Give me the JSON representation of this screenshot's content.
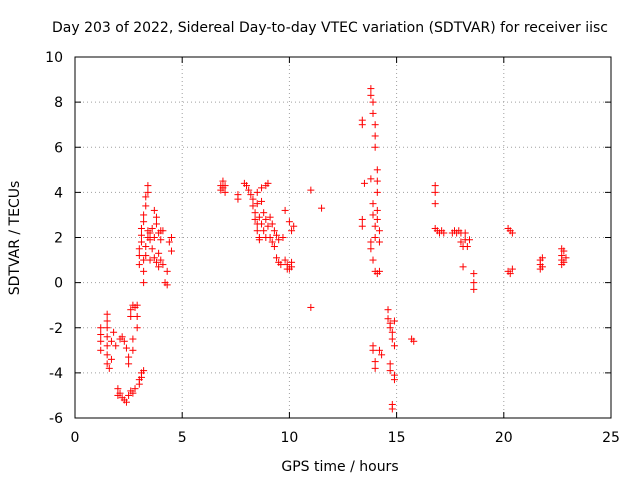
{
  "chart_data": {
    "type": "scatter",
    "title": "Day 203 of 2022, Sidereal Day-to-day VTEC variation (SDTVAR) for receiver iisc",
    "xlabel": "GPS time / hours",
    "ylabel": "SDTVAR / TECUs",
    "xlim": [
      0,
      25
    ],
    "ylim": [
      -6,
      10
    ],
    "xticks": [
      0,
      5,
      10,
      15,
      20,
      25
    ],
    "yticks": [
      -6,
      -4,
      -2,
      0,
      2,
      4,
      6,
      8,
      10
    ],
    "grid": true,
    "marker": "+",
    "color": "#ff0000",
    "series": [
      {
        "name": "SDTVAR",
        "points": [
          [
            1.2,
            -2.0
          ],
          [
            1.2,
            -2.3
          ],
          [
            1.2,
            -2.6
          ],
          [
            1.2,
            -3.0
          ],
          [
            1.5,
            -1.4
          ],
          [
            1.5,
            -1.7
          ],
          [
            1.5,
            -2.0
          ],
          [
            1.5,
            -2.4
          ],
          [
            1.5,
            -2.8
          ],
          [
            1.5,
            -3.2
          ],
          [
            1.5,
            -3.6
          ],
          [
            1.6,
            -3.8
          ],
          [
            1.7,
            -3.4
          ],
          [
            1.7,
            -2.6
          ],
          [
            1.8,
            -2.2
          ],
          [
            1.9,
            -2.8
          ],
          [
            2.0,
            -4.7
          ],
          [
            2.0,
            -5.0
          ],
          [
            2.1,
            -2.5
          ],
          [
            2.1,
            -4.9
          ],
          [
            2.2,
            -5.1
          ],
          [
            2.2,
            -2.4
          ],
          [
            2.3,
            -5.2
          ],
          [
            2.3,
            -2.6
          ],
          [
            2.4,
            -5.3
          ],
          [
            2.4,
            -2.9
          ],
          [
            2.5,
            -5.0
          ],
          [
            2.5,
            -3.3
          ],
          [
            2.5,
            -3.6
          ],
          [
            2.6,
            -4.8
          ],
          [
            2.6,
            -1.2
          ],
          [
            2.6,
            -1.5
          ],
          [
            2.7,
            -4.9
          ],
          [
            2.7,
            -1.0
          ],
          [
            2.8,
            -4.7
          ],
          [
            2.8,
            -1.1
          ],
          [
            2.9,
            -1.0
          ],
          [
            2.9,
            -1.5
          ],
          [
            2.9,
            -2.0
          ],
          [
            2.7,
            -2.5
          ],
          [
            2.7,
            -3.0
          ],
          [
            3.0,
            -4.5
          ],
          [
            3.0,
            -4.3
          ],
          [
            3.0,
            0.8
          ],
          [
            3.0,
            1.2
          ],
          [
            3.0,
            1.5
          ],
          [
            3.1,
            -4.2
          ],
          [
            3.1,
            -4.0
          ],
          [
            3.1,
            1.8
          ],
          [
            3.1,
            2.1
          ],
          [
            3.1,
            2.4
          ],
          [
            3.2,
            -3.9
          ],
          [
            3.2,
            0.0
          ],
          [
            3.2,
            0.5
          ],
          [
            3.2,
            1.0
          ],
          [
            3.2,
            2.7
          ],
          [
            3.2,
            3.0
          ],
          [
            3.3,
            3.4
          ],
          [
            3.3,
            3.8
          ],
          [
            3.3,
            1.2
          ],
          [
            3.3,
            1.6
          ],
          [
            3.4,
            4.0
          ],
          [
            3.4,
            4.3
          ],
          [
            3.4,
            2.0
          ],
          [
            3.4,
            2.3
          ],
          [
            3.5,
            1.9
          ],
          [
            3.5,
            2.2
          ],
          [
            3.5,
            1.0
          ],
          [
            3.6,
            2.4
          ],
          [
            3.6,
            1.5
          ],
          [
            3.7,
            2.0
          ],
          [
            3.7,
            1.1
          ],
          [
            3.7,
            3.2
          ],
          [
            3.8,
            2.6
          ],
          [
            3.8,
            0.9
          ],
          [
            3.8,
            2.9
          ],
          [
            3.9,
            2.2
          ],
          [
            3.9,
            1.3
          ],
          [
            3.9,
            0.7
          ],
          [
            4.0,
            1.0
          ],
          [
            4.0,
            2.3
          ],
          [
            4.0,
            1.9
          ],
          [
            4.1,
            2.3
          ],
          [
            4.1,
            0.8
          ],
          [
            4.2,
            0.0
          ],
          [
            4.3,
            -0.1
          ],
          [
            4.3,
            0.5
          ],
          [
            4.4,
            1.8
          ],
          [
            4.5,
            2.0
          ],
          [
            4.5,
            1.4
          ],
          [
            6.8,
            4.1
          ],
          [
            6.8,
            4.3
          ],
          [
            6.9,
            4.2
          ],
          [
            6.9,
            4.5
          ],
          [
            7.0,
            4.3
          ],
          [
            7.0,
            4.0
          ],
          [
            7.6,
            3.7
          ],
          [
            7.6,
            3.9
          ],
          [
            7.9,
            4.4
          ],
          [
            8.0,
            4.3
          ],
          [
            8.1,
            4.1
          ],
          [
            8.2,
            3.9
          ],
          [
            8.3,
            3.7
          ],
          [
            8.3,
            3.4
          ],
          [
            8.4,
            3.1
          ],
          [
            8.4,
            2.8
          ],
          [
            8.5,
            2.6
          ],
          [
            8.5,
            2.3
          ],
          [
            8.5,
            3.5
          ],
          [
            8.5,
            4.0
          ],
          [
            8.6,
            2.0
          ],
          [
            8.6,
            1.9
          ],
          [
            8.6,
            2.9
          ],
          [
            8.7,
            2.6
          ],
          [
            8.7,
            3.6
          ],
          [
            8.7,
            4.2
          ],
          [
            8.8,
            2.3
          ],
          [
            8.8,
            3.1
          ],
          [
            8.9,
            2.0
          ],
          [
            8.9,
            2.8
          ],
          [
            8.9,
            4.3
          ],
          [
            9.0,
            2.5
          ],
          [
            9.0,
            4.4
          ],
          [
            9.1,
            2.9
          ],
          [
            9.1,
            2.0
          ],
          [
            9.2,
            2.6
          ],
          [
            9.2,
            1.8
          ],
          [
            9.3,
            2.3
          ],
          [
            9.3,
            1.6
          ],
          [
            9.4,
            2.1
          ],
          [
            9.4,
            1.1
          ],
          [
            9.5,
            1.9
          ],
          [
            9.5,
            0.9
          ],
          [
            9.6,
            0.8
          ],
          [
            9.7,
            2.0
          ],
          [
            9.8,
            3.2
          ],
          [
            9.8,
            1.0
          ],
          [
            9.9,
            0.6
          ],
          [
            9.9,
            0.8
          ],
          [
            10.0,
            0.6
          ],
          [
            10.0,
            2.7
          ],
          [
            10.1,
            2.3
          ],
          [
            10.1,
            0.9
          ],
          [
            10.1,
            0.7
          ],
          [
            10.2,
            2.5
          ],
          [
            11.0,
            4.1
          ],
          [
            11.0,
            -1.1
          ],
          [
            11.5,
            3.3
          ],
          [
            13.4,
            7.2
          ],
          [
            13.4,
            7.0
          ],
          [
            13.4,
            2.8
          ],
          [
            13.4,
            2.5
          ],
          [
            13.5,
            4.4
          ],
          [
            13.8,
            8.6
          ],
          [
            13.8,
            8.3
          ],
          [
            13.8,
            4.6
          ],
          [
            13.8,
            1.8
          ],
          [
            13.8,
            1.5
          ],
          [
            13.9,
            8.0
          ],
          [
            13.9,
            7.5
          ],
          [
            13.9,
            3.5
          ],
          [
            13.9,
            3.0
          ],
          [
            13.9,
            1.0
          ],
          [
            13.9,
            -2.8
          ],
          [
            13.9,
            -3.0
          ],
          [
            14.0,
            7.0
          ],
          [
            14.0,
            6.5
          ],
          [
            14.0,
            6.0
          ],
          [
            14.0,
            2.5
          ],
          [
            14.0,
            2.0
          ],
          [
            14.0,
            0.5
          ],
          [
            14.0,
            -3.5
          ],
          [
            14.0,
            -3.8
          ],
          [
            14.1,
            5.0
          ],
          [
            14.1,
            4.5
          ],
          [
            14.1,
            4.0
          ],
          [
            14.1,
            3.2
          ],
          [
            14.1,
            2.8
          ],
          [
            14.1,
            0.4
          ],
          [
            14.2,
            2.3
          ],
          [
            14.2,
            1.8
          ],
          [
            14.2,
            0.5
          ],
          [
            14.2,
            -3.0
          ],
          [
            14.3,
            -3.2
          ],
          [
            14.6,
            -1.2
          ],
          [
            14.6,
            -1.6
          ],
          [
            14.7,
            -1.8
          ],
          [
            14.7,
            -2.0
          ],
          [
            14.7,
            -3.6
          ],
          [
            14.7,
            -3.9
          ],
          [
            14.8,
            -2.2
          ],
          [
            14.8,
            -2.5
          ],
          [
            14.8,
            -5.4
          ],
          [
            14.8,
            -5.6
          ],
          [
            14.9,
            -2.8
          ],
          [
            14.9,
            -4.1
          ],
          [
            14.9,
            -4.3
          ],
          [
            14.9,
            -1.7
          ],
          [
            15.7,
            -2.5
          ],
          [
            15.8,
            -2.6
          ],
          [
            16.8,
            4.3
          ],
          [
            16.8,
            4.0
          ],
          [
            16.8,
            3.5
          ],
          [
            16.8,
            2.4
          ],
          [
            16.9,
            2.3
          ],
          [
            17.0,
            2.2
          ],
          [
            17.1,
            2.3
          ],
          [
            17.2,
            2.2
          ],
          [
            17.6,
            2.2
          ],
          [
            17.7,
            2.3
          ],
          [
            17.8,
            2.2
          ],
          [
            17.9,
            2.3
          ],
          [
            18.0,
            2.2
          ],
          [
            18.0,
            1.8
          ],
          [
            18.1,
            1.6
          ],
          [
            18.1,
            0.7
          ],
          [
            18.2,
            2.2
          ],
          [
            18.2,
            1.9
          ],
          [
            18.3,
            1.6
          ],
          [
            18.4,
            1.9
          ],
          [
            18.6,
            0.4
          ],
          [
            18.6,
            0.0
          ],
          [
            18.6,
            -0.3
          ],
          [
            20.2,
            2.4
          ],
          [
            20.2,
            0.5
          ],
          [
            20.3,
            2.3
          ],
          [
            20.3,
            0.4
          ],
          [
            20.4,
            2.2
          ],
          [
            20.4,
            0.6
          ],
          [
            21.7,
            1.0
          ],
          [
            21.7,
            0.8
          ],
          [
            21.7,
            0.6
          ],
          [
            21.8,
            1.1
          ],
          [
            21.8,
            0.7
          ],
          [
            22.7,
            1.5
          ],
          [
            22.7,
            1.2
          ],
          [
            22.7,
            1.0
          ],
          [
            22.7,
            0.8
          ],
          [
            22.8,
            1.4
          ],
          [
            22.8,
            0.9
          ],
          [
            22.9,
            1.1
          ]
        ]
      }
    ]
  }
}
